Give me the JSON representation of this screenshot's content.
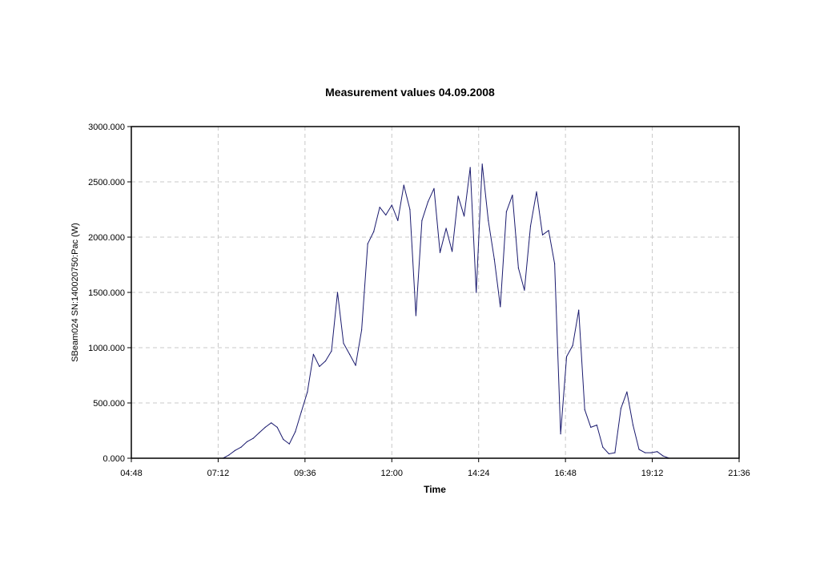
{
  "chart_data": {
    "type": "line",
    "title": "Measurement values 04.09.2008",
    "xlabel": "Time",
    "ylabel": "SBeam024 SN:140020750:Pac (W)",
    "x_tick_labels": [
      "04:48",
      "07:12",
      "09:36",
      "12:00",
      "14:24",
      "16:48",
      "19:12",
      "21:36"
    ],
    "y_tick_labels": [
      "0.000",
      "500.000",
      "1000.000",
      "1500.000",
      "2000.000",
      "2500.000",
      "3000.000"
    ],
    "xlim": [
      "04:48",
      "21:36"
    ],
    "ylim": [
      0,
      3000
    ],
    "grid": true,
    "series_color": "#1a1a6e",
    "x": [
      "07:20",
      "07:30",
      "07:40",
      "07:50",
      "08:00",
      "08:10",
      "08:20",
      "08:30",
      "08:40",
      "08:50",
      "09:00",
      "09:10",
      "09:20",
      "09:30",
      "09:40",
      "09:50",
      "10:00",
      "10:10",
      "10:20",
      "10:30",
      "10:40",
      "10:50",
      "11:00",
      "11:10",
      "11:20",
      "11:30",
      "11:40",
      "11:50",
      "12:00",
      "12:10",
      "12:20",
      "12:30",
      "12:40",
      "12:50",
      "13:00",
      "13:10",
      "13:20",
      "13:30",
      "13:40",
      "13:50",
      "14:00",
      "14:10",
      "14:20",
      "14:30",
      "14:40",
      "14:50",
      "15:00",
      "15:10",
      "15:20",
      "15:30",
      "15:40",
      "15:50",
      "16:00",
      "16:10",
      "16:20",
      "16:30",
      "16:40",
      "16:50",
      "17:00",
      "17:10",
      "17:20",
      "17:30",
      "17:40",
      "17:50",
      "18:00",
      "18:10",
      "18:20",
      "18:30",
      "18:40",
      "18:50",
      "19:00",
      "19:10",
      "19:20",
      "19:30",
      "19:40"
    ],
    "values": [
      0,
      30,
      70,
      100,
      150,
      180,
      230,
      280,
      320,
      280,
      170,
      130,
      240,
      420,
      600,
      940,
      830,
      880,
      970,
      1500,
      1040,
      940,
      840,
      1160,
      1940,
      2050,
      2270,
      2200,
      2290,
      2150,
      2470,
      2250,
      1290,
      2150,
      2320,
      2440,
      1860,
      2080,
      1870,
      2370,
      2190,
      2630,
      1500,
      2660,
      2150,
      1800,
      1370,
      2230,
      2380,
      1720,
      1520,
      2100,
      2410,
      2020,
      2060,
      1760,
      220,
      920,
      1020,
      1340,
      440,
      280,
      300,
      100,
      40,
      50,
      450,
      600,
      300,
      80,
      50,
      50,
      60,
      20,
      0
    ]
  }
}
